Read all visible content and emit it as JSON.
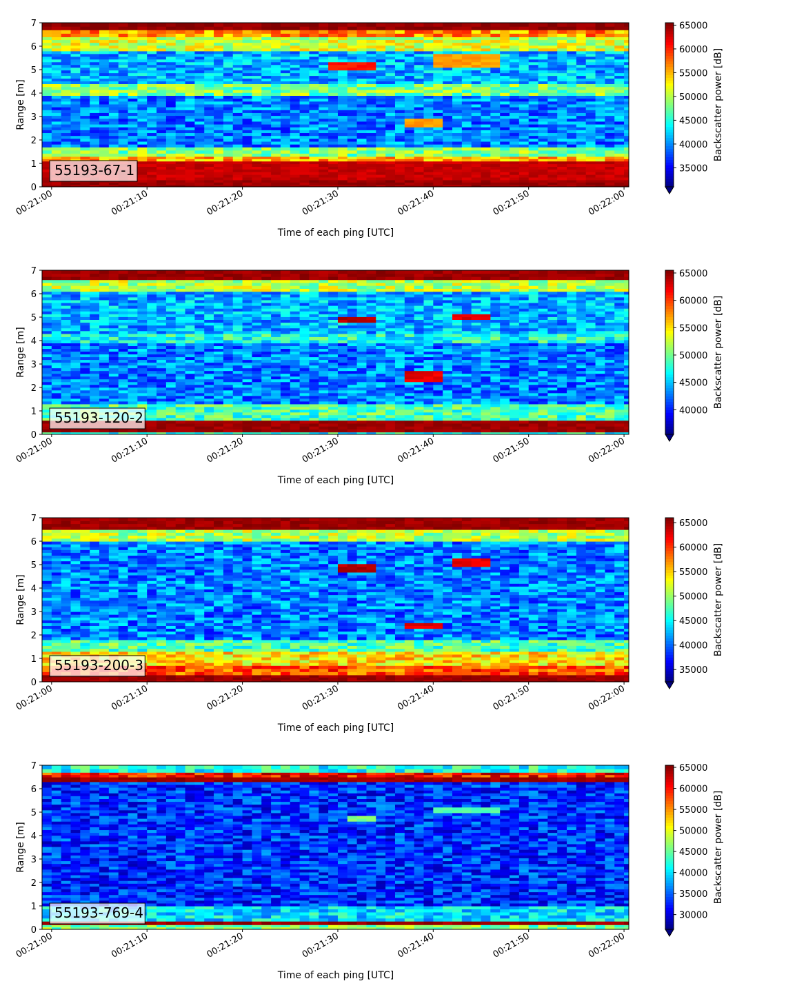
{
  "chart_data": [
    {
      "type": "heatmap",
      "label": "55193-67-1",
      "xlabel": "Time of each ping [UTC]",
      "ylabel": "Range [m]",
      "xticks": [
        "00:21:00",
        "00:21:10",
        "00:21:20",
        "00:21:30",
        "00:21:40",
        "00:21:50",
        "00:22:00"
      ],
      "xlim_seconds": [
        -1,
        60.5
      ],
      "ylim": [
        0,
        7
      ],
      "yticks": [
        0,
        1,
        2,
        3,
        4,
        5,
        6,
        7
      ],
      "colorbar": {
        "label": "Backscatter power [dB]",
        "ticks": [
          35000,
          40000,
          45000,
          50000,
          55000,
          60000,
          65000
        ],
        "range": [
          31000,
          65500
        ],
        "colormap": "jet",
        "extend": "min"
      },
      "bands": [
        {
          "range": [
            0.0,
            0.3
          ],
          "level": 0.97
        },
        {
          "range": [
            0.3,
            1.1
          ],
          "level": 0.93
        },
        {
          "range": [
            1.1,
            1.3
          ],
          "level": 0.7
        },
        {
          "range": [
            1.3,
            1.7
          ],
          "level": 0.5
        },
        {
          "range": [
            1.7,
            3.9
          ],
          "level": 0.25
        },
        {
          "range": [
            3.9,
            4.4
          ],
          "level": 0.5
        },
        {
          "range": [
            4.4,
            5.8
          ],
          "level": 0.3
        },
        {
          "range": [
            5.8,
            6.4
          ],
          "level": 0.58
        },
        {
          "range": [
            6.4,
            6.7
          ],
          "level": 0.72
        },
        {
          "range": [
            6.7,
            7.0
          ],
          "level": 0.98
        }
      ],
      "features": [
        {
          "t": [
            29,
            33
          ],
          "range": [
            5.0,
            5.3
          ],
          "level": 0.85
        },
        {
          "t": [
            40,
            46
          ],
          "range": [
            5.2,
            5.6
          ],
          "level": 0.72
        },
        {
          "t": [
            37,
            40
          ],
          "range": [
            2.6,
            2.9
          ],
          "level": 0.72
        }
      ]
    },
    {
      "type": "heatmap",
      "label": "55193-120-2",
      "xlabel": "Time of each ping [UTC]",
      "ylabel": "Range [m]",
      "xticks": [
        "00:21:00",
        "00:21:10",
        "00:21:20",
        "00:21:30",
        "00:21:40",
        "00:21:50",
        "00:22:00"
      ],
      "xlim_seconds": [
        -1,
        60.5
      ],
      "ylim": [
        0,
        7
      ],
      "yticks": [
        0,
        1,
        2,
        3,
        4,
        5,
        6,
        7
      ],
      "colorbar": {
        "label": "Backscatter power [dB]",
        "ticks": [
          40000,
          45000,
          50000,
          55000,
          60000,
          65000
        ],
        "range": [
          35500,
          65500
        ],
        "colormap": "jet",
        "extend": "min"
      },
      "bands": [
        {
          "range": [
            0.0,
            0.1
          ],
          "level": 0.4
        },
        {
          "range": [
            0.1,
            0.6
          ],
          "level": 0.97
        },
        {
          "range": [
            0.6,
            1.3
          ],
          "level": 0.45
        },
        {
          "range": [
            1.3,
            3.9
          ],
          "level": 0.25
        },
        {
          "range": [
            3.9,
            4.3
          ],
          "level": 0.4
        },
        {
          "range": [
            4.3,
            6.1
          ],
          "level": 0.3
        },
        {
          "range": [
            6.1,
            6.6
          ],
          "level": 0.55
        },
        {
          "range": [
            6.6,
            7.0
          ],
          "level": 0.97
        }
      ],
      "features": [
        {
          "t": [
            30,
            33
          ],
          "range": [
            4.8,
            5.0
          ],
          "level": 0.95
        },
        {
          "t": [
            42,
            45
          ],
          "range": [
            4.9,
            5.1
          ],
          "level": 0.9
        },
        {
          "t": [
            37,
            40
          ],
          "range": [
            2.3,
            2.6
          ],
          "level": 0.9
        }
      ]
    },
    {
      "type": "heatmap",
      "label": "55193-200-3",
      "xlabel": "Time of each ping [UTC]",
      "ylabel": "Range [m]",
      "xticks": [
        "00:21:00",
        "00:21:10",
        "00:21:20",
        "00:21:30",
        "00:21:40",
        "00:21:50",
        "00:22:00"
      ],
      "xlim_seconds": [
        -1,
        60.5
      ],
      "ylim": [
        0,
        7
      ],
      "yticks": [
        0,
        1,
        2,
        3,
        4,
        5,
        6,
        7
      ],
      "colorbar": {
        "label": "Backscatter power [dB]",
        "ticks": [
          35000,
          40000,
          45000,
          50000,
          55000,
          60000,
          65000
        ],
        "range": [
          32500,
          66000
        ],
        "colormap": "jet",
        "extend": "min"
      },
      "bands": [
        {
          "range": [
            0.0,
            0.3
          ],
          "level": 0.97
        },
        {
          "range": [
            0.3,
            0.7
          ],
          "level": 0.8
        },
        {
          "range": [
            0.7,
            1.3
          ],
          "level": 0.65
        },
        {
          "range": [
            1.3,
            1.8
          ],
          "level": 0.45
        },
        {
          "range": [
            1.8,
            6.0
          ],
          "level": 0.25
        },
        {
          "range": [
            6.0,
            6.5
          ],
          "level": 0.55
        },
        {
          "range": [
            6.5,
            7.0
          ],
          "level": 0.97
        }
      ],
      "features": [
        {
          "t": [
            30,
            33
          ],
          "range": [
            4.8,
            5.0
          ],
          "level": 0.95
        },
        {
          "t": [
            42,
            45
          ],
          "range": [
            5.0,
            5.2
          ],
          "level": 0.9
        },
        {
          "t": [
            37,
            40
          ],
          "range": [
            2.3,
            2.5
          ],
          "level": 0.9
        }
      ]
    },
    {
      "type": "heatmap",
      "label": "55193-769-4",
      "xlabel": "Time of each ping [UTC]",
      "ylabel": "Range [m]",
      "xticks": [
        "00:21:00",
        "00:21:10",
        "00:21:20",
        "00:21:30",
        "00:21:40",
        "00:21:50",
        "00:22:00"
      ],
      "xlim_seconds": [
        -1,
        60.5
      ],
      "ylim": [
        0,
        7
      ],
      "yticks": [
        0,
        1,
        2,
        3,
        4,
        5,
        6,
        7
      ],
      "colorbar": {
        "label": "Backscatter power [dB]",
        "ticks": [
          30000,
          35000,
          40000,
          45000,
          50000,
          55000,
          60000,
          65000
        ],
        "range": [
          26500,
          65500
        ],
        "colormap": "jet",
        "extend": "min"
      },
      "bands": [
        {
          "range": [
            0.0,
            0.2
          ],
          "level": 0.5
        },
        {
          "range": [
            0.2,
            0.35
          ],
          "level": 0.97
        },
        {
          "range": [
            0.35,
            1.0
          ],
          "level": 0.35
        },
        {
          "range": [
            1.0,
            6.3
          ],
          "level": 0.17
        },
        {
          "range": [
            6.3,
            6.5
          ],
          "level": 0.97
        },
        {
          "range": [
            6.5,
            6.7
          ],
          "level": 0.85
        },
        {
          "range": [
            6.7,
            7.0
          ],
          "level": 0.4
        }
      ],
      "features": [
        {
          "t": [
            31,
            33
          ],
          "range": [
            4.7,
            4.8
          ],
          "level": 0.5
        },
        {
          "t": [
            40,
            46
          ],
          "range": [
            5.0,
            5.2
          ],
          "level": 0.45
        }
      ]
    }
  ]
}
